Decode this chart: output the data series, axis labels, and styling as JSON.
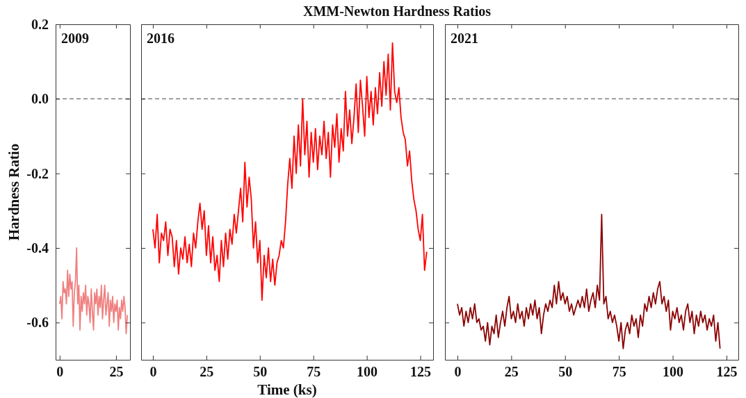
{
  "chart_data": [
    {
      "type": "line",
      "ylabel": "Hardness Ratio",
      "annotations": [
        "2009"
      ],
      "xlim": [
        -1.8,
        31.2
      ],
      "xticks": [
        0,
        25
      ],
      "ylim": [
        -0.7,
        0.2
      ],
      "yticks": [
        {
          "value": 0.2,
          "label": "0.2"
        },
        {
          "value": 0,
          "label": "0.0"
        },
        {
          "value": -0.2,
          "label": "-0.2"
        },
        {
          "value": -0.4,
          "label": "-0.4"
        },
        {
          "value": -0.6,
          "label": "-0.6"
        }
      ],
      "grid": false,
      "ref_lines": [
        {
          "axis": "y",
          "value": 0,
          "color": "#808080",
          "line_style": "dashed"
        }
      ],
      "series": [
        {
          "color": "#f08080",
          "x": [
            0,
            0.5,
            1,
            1.5,
            2,
            2.5,
            3,
            3.5,
            4,
            4.5,
            5,
            5.5,
            6,
            6.5,
            7,
            7.5,
            8,
            8.5,
            9,
            9.5,
            10,
            10.5,
            11,
            11.5,
            12,
            12.5,
            13,
            13.5,
            14,
            14.5,
            15,
            15.5,
            16,
            16.5,
            17,
            17.5,
            18,
            18.5,
            19,
            19.5,
            20,
            20.5,
            21,
            21.5,
            22,
            22.5,
            23,
            23.5,
            24,
            24.5,
            25,
            25.5,
            26,
            26.5,
            27,
            27.5,
            28,
            28.5,
            29,
            29.5,
            30
          ],
          "values": [
            -0.55,
            -0.53,
            -0.59,
            -0.49,
            -0.52,
            -0.51,
            -0.55,
            -0.46,
            -0.53,
            -0.47,
            -0.51,
            -0.49,
            -0.61,
            -0.52,
            -0.49,
            -0.4,
            -0.55,
            -0.5,
            -0.62,
            -0.53,
            -0.57,
            -0.52,
            -0.55,
            -0.5,
            -0.58,
            -0.53,
            -0.55,
            -0.6,
            -0.51,
            -0.57,
            -0.62,
            -0.52,
            -0.55,
            -0.51,
            -0.58,
            -0.53,
            -0.56,
            -0.5,
            -0.59,
            -0.54,
            -0.5,
            -0.58,
            -0.55,
            -0.52,
            -0.61,
            -0.54,
            -0.57,
            -0.53,
            -0.6,
            -0.55,
            -0.57,
            -0.54,
            -0.62,
            -0.56,
            -0.59,
            -0.54,
            -0.57,
            -0.53,
            -0.56,
            -0.63,
            -0.58
          ]
        }
      ]
    },
    {
      "type": "line",
      "title": "XMM-Newton Hardness Ratios",
      "xlabel": "Time (ks)",
      "annotations": [
        "2016"
      ],
      "xlim": [
        -5.5,
        131
      ],
      "xticks": [
        0,
        25,
        50,
        75,
        100,
        125
      ],
      "ylim": [
        -0.7,
        0.2
      ],
      "yticks": [
        {
          "value": 0.2,
          "label": null
        },
        {
          "value": 0,
          "label": null
        },
        {
          "value": -0.2,
          "label": null
        },
        {
          "value": -0.4,
          "label": null
        },
        {
          "value": -0.6,
          "label": null
        }
      ],
      "tick_labels": "x",
      "grid": false,
      "ref_lines": [
        {
          "axis": "y",
          "value": 0,
          "color": "#808080",
          "line_style": "dashed"
        }
      ],
      "series": [
        {
          "color": "#ff0000",
          "x": [
            0,
            1,
            2,
            3,
            4,
            5,
            6,
            7,
            8,
            9,
            10,
            11,
            12,
            13,
            14,
            15,
            16,
            17,
            18,
            19,
            20,
            21,
            22,
            23,
            24,
            25,
            26,
            27,
            28,
            29,
            30,
            31,
            32,
            33,
            34,
            35,
            36,
            37,
            38,
            39,
            40,
            41,
            42,
            43,
            44,
            45,
            46,
            47,
            48,
            49,
            50,
            51,
            52,
            53,
            54,
            55,
            56,
            57,
            58,
            59,
            60,
            61,
            62,
            63,
            64,
            65,
            66,
            67,
            68,
            69,
            70,
            71,
            72,
            73,
            74,
            75,
            76,
            77,
            78,
            79,
            80,
            81,
            82,
            83,
            84,
            85,
            86,
            87,
            88,
            89,
            90,
            91,
            92,
            93,
            94,
            95,
            96,
            97,
            98,
            99,
            100,
            101,
            102,
            103,
            104,
            105,
            106,
            107,
            108,
            109,
            110,
            111,
            112,
            113,
            114,
            115,
            116,
            117,
            118,
            119,
            120,
            121,
            122,
            123,
            124,
            125,
            126,
            127,
            128
          ],
          "values": [
            -0.35,
            -0.4,
            -0.31,
            -0.44,
            -0.36,
            -0.38,
            -0.33,
            -0.42,
            -0.35,
            -0.37,
            -0.45,
            -0.38,
            -0.47,
            -0.4,
            -0.43,
            -0.37,
            -0.44,
            -0.39,
            -0.45,
            -0.36,
            -0.4,
            -0.33,
            -0.28,
            -0.35,
            -0.3,
            -0.42,
            -0.34,
            -0.44,
            -0.37,
            -0.46,
            -0.42,
            -0.49,
            -0.38,
            -0.45,
            -0.36,
            -0.43,
            -0.35,
            -0.39,
            -0.31,
            -0.36,
            -0.3,
            -0.24,
            -0.33,
            -0.17,
            -0.29,
            -0.21,
            -0.27,
            -0.4,
            -0.33,
            -0.44,
            -0.38,
            -0.54,
            -0.42,
            -0.48,
            -0.4,
            -0.49,
            -0.43,
            -0.5,
            -0.44,
            -0.42,
            -0.38,
            -0.4,
            -0.33,
            -0.23,
            -0.16,
            -0.24,
            -0.1,
            -0.2,
            -0.07,
            -0.18,
            0.0,
            -0.15,
            -0.06,
            -0.21,
            -0.09,
            -0.17,
            -0.08,
            -0.19,
            -0.1,
            -0.15,
            -0.06,
            -0.16,
            -0.09,
            -0.21,
            -0.07,
            -0.13,
            -0.04,
            -0.17,
            -0.08,
            -0.14,
            0.02,
            -0.1,
            -0.03,
            -0.12,
            -0.05,
            0.04,
            -0.09,
            0.05,
            -0.02,
            -0.1,
            0.06,
            -0.05,
            0.02,
            -0.07,
            0.03,
            -0.04,
            0.07,
            -0.02,
            0.1,
            0.01,
            0.12,
            -0.03,
            0.15,
            0.02,
            -0.01,
            0.03,
            -0.05,
            -0.09,
            -0.11,
            -0.18,
            -0.14,
            -0.22,
            -0.27,
            -0.3,
            -0.35,
            -0.38,
            -0.31,
            -0.46,
            -0.41
          ]
        }
      ]
    },
    {
      "type": "line",
      "annotations": [
        "2021"
      ],
      "xlim": [
        -5.8,
        130.5
      ],
      "xticks": [
        0,
        25,
        50,
        75,
        100,
        125
      ],
      "ylim": [
        -0.7,
        0.2
      ],
      "yticks": [
        {
          "value": 0.2,
          "label": null
        },
        {
          "value": 0,
          "label": null
        },
        {
          "value": -0.2,
          "label": null
        },
        {
          "value": -0.4,
          "label": null
        },
        {
          "value": -0.6,
          "label": null
        }
      ],
      "tick_labels": "x",
      "grid": false,
      "ref_lines": [
        {
          "axis": "y",
          "value": 0,
          "color": "#808080",
          "line_style": "dashed"
        }
      ],
      "series": [
        {
          "color": "#8b0000",
          "x": [
            0,
            1,
            2,
            3,
            4,
            5,
            6,
            7,
            8,
            9,
            10,
            11,
            12,
            13,
            14,
            15,
            16,
            17,
            18,
            19,
            20,
            21,
            22,
            23,
            24,
            25,
            26,
            27,
            28,
            29,
            30,
            31,
            32,
            33,
            34,
            35,
            36,
            37,
            38,
            39,
            40,
            41,
            42,
            43,
            44,
            45,
            46,
            47,
            48,
            49,
            50,
            51,
            52,
            53,
            54,
            55,
            56,
            57,
            58,
            59,
            60,
            61,
            62,
            63,
            64,
            65,
            66,
            67,
            68,
            69,
            70,
            71,
            72,
            73,
            74,
            75,
            76,
            77,
            78,
            79,
            80,
            81,
            82,
            83,
            84,
            85,
            86,
            87,
            88,
            89,
            90,
            91,
            92,
            93,
            94,
            95,
            96,
            97,
            98,
            99,
            100,
            101,
            102,
            103,
            104,
            105,
            106,
            107,
            108,
            109,
            110,
            111,
            112,
            113,
            114,
            115,
            116,
            117,
            118,
            119,
            120,
            121,
            122
          ],
          "values": [
            -0.55,
            -0.58,
            -0.56,
            -0.61,
            -0.57,
            -0.6,
            -0.56,
            -0.59,
            -0.55,
            -0.6,
            -0.59,
            -0.62,
            -0.61,
            -0.65,
            -0.6,
            -0.66,
            -0.61,
            -0.63,
            -0.58,
            -0.64,
            -0.6,
            -0.57,
            -0.61,
            -0.56,
            -0.53,
            -0.59,
            -0.57,
            -0.6,
            -0.55,
            -0.59,
            -0.57,
            -0.61,
            -0.56,
            -0.59,
            -0.55,
            -0.58,
            -0.54,
            -0.59,
            -0.56,
            -0.63,
            -0.58,
            -0.55,
            -0.57,
            -0.54,
            -0.56,
            -0.5,
            -0.55,
            -0.49,
            -0.54,
            -0.52,
            -0.55,
            -0.53,
            -0.57,
            -0.55,
            -0.58,
            -0.56,
            -0.54,
            -0.56,
            -0.53,
            -0.56,
            -0.51,
            -0.57,
            -0.54,
            -0.52,
            -0.56,
            -0.5,
            -0.54,
            -0.31,
            -0.55,
            -0.53,
            -0.59,
            -0.57,
            -0.6,
            -0.58,
            -0.61,
            -0.65,
            -0.6,
            -0.67,
            -0.62,
            -0.6,
            -0.63,
            -0.58,
            -0.61,
            -0.59,
            -0.64,
            -0.58,
            -0.61,
            -0.55,
            -0.57,
            -0.53,
            -0.56,
            -0.52,
            -0.55,
            -0.51,
            -0.49,
            -0.55,
            -0.53,
            -0.57,
            -0.54,
            -0.62,
            -0.57,
            -0.59,
            -0.56,
            -0.6,
            -0.58,
            -0.62,
            -0.57,
            -0.55,
            -0.6,
            -0.57,
            -0.63,
            -0.58,
            -0.61,
            -0.57,
            -0.6,
            -0.58,
            -0.62,
            -0.59,
            -0.61,
            -0.58,
            -0.65,
            -0.6,
            -0.67
          ]
        }
      ]
    }
  ]
}
